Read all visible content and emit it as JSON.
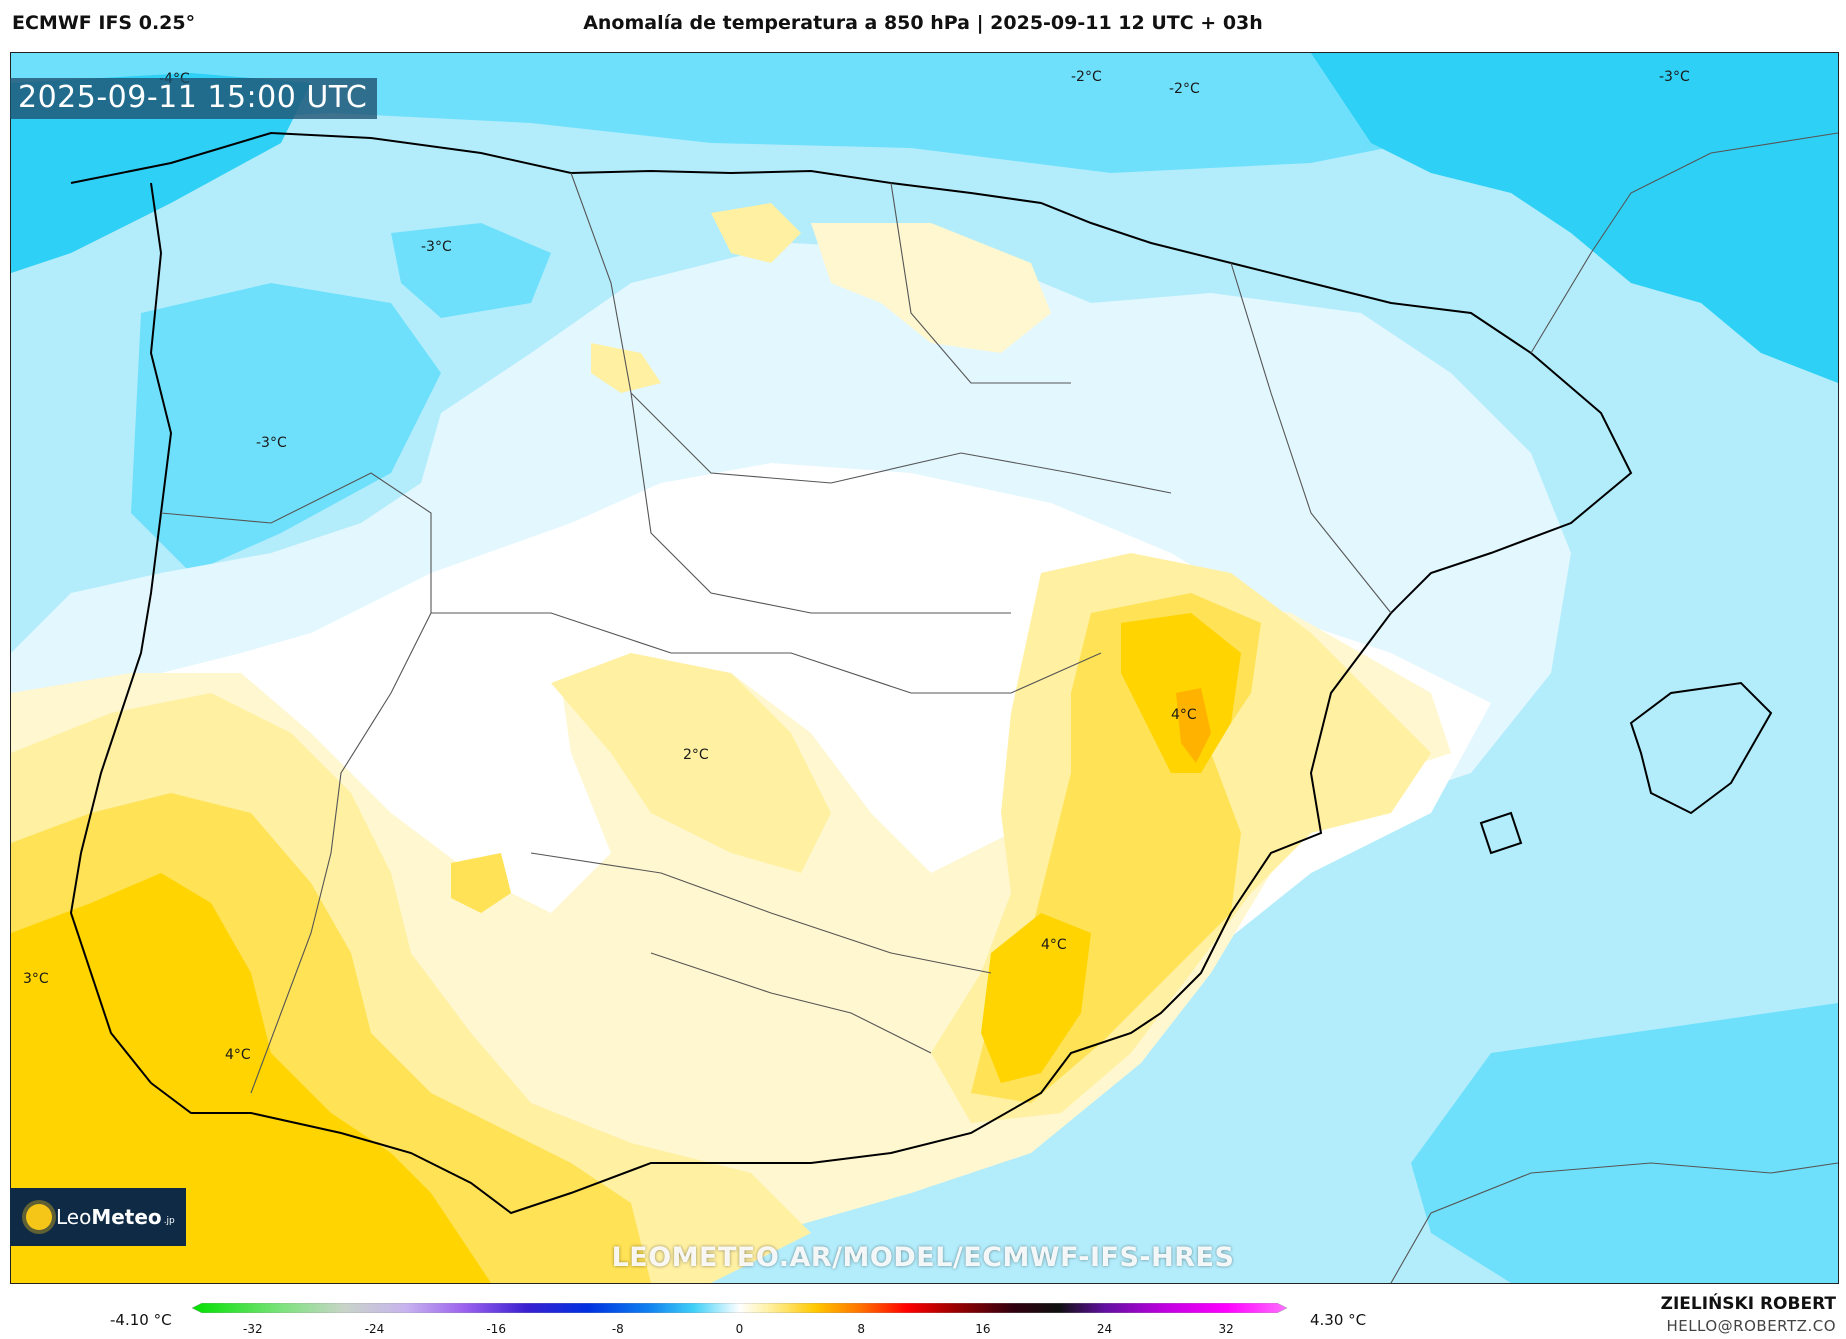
{
  "header": {
    "model": "ECMWF IFS 0.25°",
    "title": "Anomalía de temperatura a 850 hPa | 2025-09-11 12 UTC + 03h"
  },
  "map": {
    "valid_time": "2025-09-11 15:00 UTC",
    "watermark": "LEOMETEO.AR/MODEL/ECMWF-IFS-HRES",
    "isoline_labels": [
      {
        "id": "nw-cold-1",
        "text": "-4°C"
      },
      {
        "id": "n-cold-1",
        "text": "-3°C"
      },
      {
        "id": "nw-cold-2",
        "text": "-3°C"
      },
      {
        "id": "ne-cold-1",
        "text": "-2°C"
      },
      {
        "id": "ne-cold-2",
        "text": "-2°C"
      },
      {
        "id": "ne-cold-3",
        "text": "-3°C"
      },
      {
        "id": "center-warm",
        "text": "2°C"
      },
      {
        "id": "east-warm-1",
        "text": "4°C"
      },
      {
        "id": "east-warm-2",
        "text": "4°C"
      },
      {
        "id": "sw-warm-1",
        "text": "3°C"
      },
      {
        "id": "sw-warm-2",
        "text": "4°C"
      }
    ],
    "colors": {
      "cold_strong": "#2fd0f5",
      "cold_mid": "#6fe0fb",
      "cold_light": "#b3edfc",
      "cold_pale": "#e3f7fe",
      "neutral": "#ffffff",
      "warm_pale": "#fff7cf",
      "warm_light": "#fff0a2",
      "warm_mid": "#ffe255",
      "warm_strong": "#ffd400",
      "warm_hot": "#ffb300",
      "land_border": "#000000",
      "admin_border": "#555555"
    }
  },
  "logo": {
    "brand_light": "Leo",
    "brand_bold": "Meteo",
    "suffix": ".jp"
  },
  "colorbar": {
    "min_label": "-4.10 °C",
    "max_label": "4.30 °C",
    "ticks": [
      "-32",
      "-24",
      "-16",
      "-8",
      "0",
      "8",
      "16",
      "24",
      "32"
    ],
    "tick_values": [
      -32,
      -24,
      -16,
      -8,
      0,
      8,
      16,
      24,
      32
    ],
    "range": [
      -36,
      36
    ],
    "stops": [
      {
        "v": -36,
        "c": "#00e000"
      },
      {
        "v": -30,
        "c": "#7fe27f"
      },
      {
        "v": -26,
        "c": "#c8d4c8"
      },
      {
        "v": -22,
        "c": "#c8b4ee"
      },
      {
        "v": -18,
        "c": "#9a60ee"
      },
      {
        "v": -14,
        "c": "#3a20d0"
      },
      {
        "v": -10,
        "c": "#0030e0"
      },
      {
        "v": -6,
        "c": "#1080f0"
      },
      {
        "v": -3,
        "c": "#40d0f8"
      },
      {
        "v": -1,
        "c": "#c0f0fd"
      },
      {
        "v": 0,
        "c": "#ffffff"
      },
      {
        "v": 2,
        "c": "#fff0a0"
      },
      {
        "v": 5,
        "c": "#ffc800"
      },
      {
        "v": 8,
        "c": "#ff7000"
      },
      {
        "v": 11,
        "c": "#ff0000"
      },
      {
        "v": 14,
        "c": "#a00000"
      },
      {
        "v": 18,
        "c": "#300010"
      },
      {
        "v": 21,
        "c": "#101010"
      },
      {
        "v": 24,
        "c": "#6010a0"
      },
      {
        "v": 28,
        "c": "#c000e0"
      },
      {
        "v": 32,
        "c": "#ff00ff"
      },
      {
        "v": 36,
        "c": "#ff70ff"
      }
    ]
  },
  "credits": {
    "author": "ZIELIŃSKI ROBERT",
    "contact": "HELLO@ROBERTZ.CO"
  }
}
